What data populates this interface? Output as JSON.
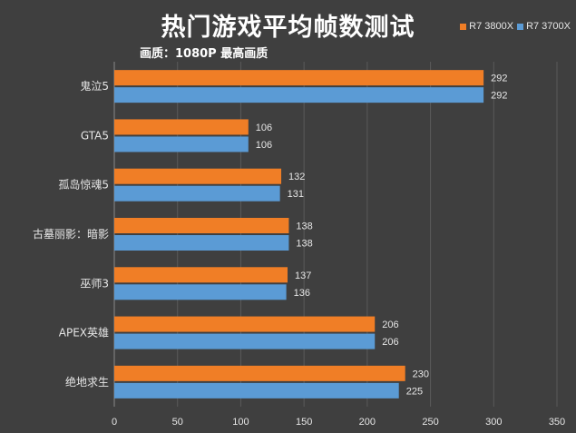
{
  "colors": {
    "series_1": "#f07e26",
    "series_2": "#5b9bd5",
    "background": "#3f3f3f",
    "grid": "#5a5a5a",
    "text": "#e6e6e6"
  },
  "chart_data": {
    "type": "bar",
    "orientation": "horizontal",
    "title": "热门游戏平均帧数测试",
    "subtitle": "画质：1080P 最高画质",
    "categories": [
      "鬼泣5",
      "GTA5",
      "孤岛惊魂5",
      "古墓丽影：暗影",
      "巫师3",
      "APEX英雄",
      "绝地求生"
    ],
    "series": [
      {
        "name": "R7 3800X",
        "values": [
          292,
          106,
          132,
          138,
          137,
          206,
          230
        ]
      },
      {
        "name": "R7 3700X",
        "values": [
          292,
          106,
          131,
          138,
          136,
          206,
          225
        ]
      }
    ],
    "xlim": [
      0,
      350
    ],
    "xticks": [
      0,
      50,
      100,
      150,
      200,
      250,
      300,
      350
    ],
    "grid": true,
    "legend": "top-right",
    "data_labels": true
  }
}
